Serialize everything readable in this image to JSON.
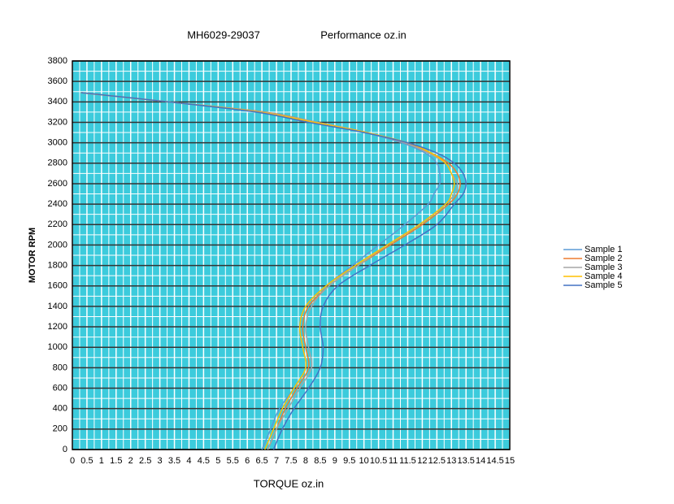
{
  "chart_data": {
    "type": "line",
    "title": "MH6029-29037",
    "subtitle": "Performance oz.in",
    "x_label": "TORQUE  oz.in",
    "y_label": "MOTOR RPM",
    "xlim": [
      0,
      15
    ],
    "xticks": [
      0,
      0.5,
      1,
      1.5,
      2,
      2.5,
      3,
      3.5,
      4,
      4.5,
      5,
      5.5,
      6,
      6.5,
      7,
      7.5,
      8,
      8.5,
      9,
      9.5,
      10,
      10.5,
      11,
      11.5,
      12,
      12.5,
      13,
      13.5,
      14,
      14.5,
      15
    ],
    "ylim": [
      0,
      3800
    ],
    "yticks": [
      0,
      200,
      400,
      600,
      800,
      1000,
      1200,
      1400,
      1600,
      1800,
      2000,
      2200,
      2400,
      2600,
      2800,
      3000,
      3200,
      3400,
      3600,
      3800
    ],
    "grid": true,
    "legend": "right",
    "series": [
      {
        "name": "Sample 1",
        "color": "#5b9bd5",
        "x": [
          0.3,
          3.3,
          6.4,
          8.2,
          10.0,
          11.3,
          12.1,
          12.5,
          12.6,
          12.6,
          12.4,
          12.2,
          11.4,
          10.5,
          9.6,
          8.7,
          8.0,
          7.8,
          7.9,
          8.0,
          7.6,
          7.1,
          6.8,
          6.5
        ],
        "values": [
          3490,
          3400,
          3300,
          3200,
          3100,
          3000,
          2900,
          2800,
          2700,
          2600,
          2500,
          2400,
          2200,
          2000,
          1800,
          1600,
          1400,
          1200,
          1000,
          800,
          600,
          400,
          200,
          0
        ]
      },
      {
        "name": "Sample 2",
        "color": "#ed7d31",
        "x": [
          0.3,
          3.3,
          6.6,
          8.4,
          10.1,
          11.4,
          12.3,
          12.9,
          13.2,
          13.3,
          13.2,
          12.9,
          12.0,
          10.9,
          9.8,
          8.8,
          8.1,
          7.9,
          8.0,
          8.1,
          7.7,
          7.3,
          7.0,
          6.7
        ],
        "values": [
          3490,
          3400,
          3300,
          3200,
          3100,
          3000,
          2900,
          2800,
          2700,
          2600,
          2500,
          2400,
          2200,
          2000,
          1800,
          1600,
          1400,
          1200,
          1000,
          800,
          600,
          400,
          200,
          0
        ]
      },
      {
        "name": "Sample 3",
        "color": "#a5a5a5",
        "x": [
          0.3,
          3.3,
          6.5,
          8.4,
          10.1,
          11.4,
          12.2,
          12.8,
          13.0,
          13.2,
          13.1,
          12.8,
          11.9,
          10.8,
          9.8,
          8.8,
          8.2,
          8.0,
          8.1,
          8.2,
          7.8,
          7.4,
          7.0,
          6.7
        ],
        "values": [
          3490,
          3400,
          3300,
          3200,
          3100,
          3000,
          2900,
          2800,
          2700,
          2600,
          2500,
          2400,
          2200,
          2000,
          1800,
          1600,
          1400,
          1200,
          1000,
          800,
          600,
          400,
          200,
          0
        ]
      },
      {
        "name": "Sample 4",
        "color": "#ffc000",
        "x": [
          0.3,
          3.3,
          6.4,
          8.3,
          10.1,
          11.5,
          12.3,
          12.8,
          13.0,
          13.1,
          13.0,
          12.8,
          11.9,
          10.8,
          9.7,
          8.7,
          8.0,
          7.8,
          7.9,
          8.0,
          7.6,
          7.2,
          6.9,
          6.6
        ],
        "values": [
          3490,
          3400,
          3300,
          3200,
          3100,
          3000,
          2900,
          2800,
          2700,
          2600,
          2500,
          2400,
          2200,
          2000,
          1800,
          1600,
          1400,
          1200,
          1000,
          800,
          600,
          400,
          200,
          0
        ]
      },
      {
        "name": "Sample 5",
        "color": "#4472c4",
        "x": [
          0.3,
          3.3,
          6.3,
          8.1,
          10.0,
          11.5,
          12.5,
          13.1,
          13.4,
          13.5,
          13.4,
          13.1,
          12.5,
          11.4,
          10.2,
          9.1,
          8.6,
          8.5,
          8.6,
          8.5,
          8.1,
          7.6,
          7.2,
          6.9
        ],
        "values": [
          3490,
          3400,
          3300,
          3200,
          3100,
          3000,
          2900,
          2800,
          2700,
          2600,
          2500,
          2400,
          2200,
          2000,
          1800,
          1600,
          1400,
          1200,
          1000,
          800,
          600,
          400,
          200,
          0
        ]
      }
    ]
  }
}
